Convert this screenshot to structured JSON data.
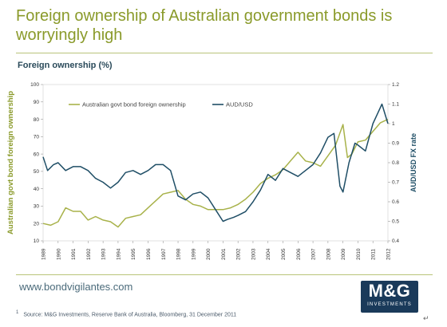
{
  "header": {
    "title": "Foreign ownership of Australian government bonds is worryingly high",
    "subtitle": "Foreign ownership (%)"
  },
  "footer": {
    "website": "www.bondvigilantes.com",
    "footnote_marker": "1",
    "source": "Source: M&G Investments, Reserve Bank of Australia, Bloomberg, 31 December 2011",
    "logo_main": "M&G",
    "logo_sub": "INVESTMENTS",
    "corner_mark": "↵"
  },
  "colors": {
    "title": "#8a9a2a",
    "series_ownership": "#a8b24a",
    "series_aud": "#1f4e66",
    "logo_bg": "#1a3a5a"
  },
  "chart_data": {
    "type": "line",
    "ylabel_left": "Australian govt bond foreign ownership",
    "ylabel_right": "AUD/USD FX rate",
    "ylim_left": [
      10,
      100
    ],
    "ylim_right": [
      0.4,
      1.2
    ],
    "yticks_left": [
      "10",
      "20",
      "30",
      "40",
      "50",
      "60",
      "70",
      "80",
      "90",
      "100"
    ],
    "yticks_right": [
      "0.4",
      "0.5",
      "0.6",
      "0.7",
      "0.8",
      "0.9",
      "1",
      "1.1",
      "1.2"
    ],
    "x_categories": [
      "1989",
      "1990",
      "1991",
      "1992",
      "1993",
      "1994",
      "1995",
      "1996",
      "1997",
      "1998",
      "1999",
      "2000",
      "2001",
      "2002",
      "2003",
      "2004",
      "2005",
      "2006",
      "2007",
      "2008",
      "2009",
      "2010",
      "2011",
      "2012"
    ],
    "xlim": [
      1989,
      2012
    ],
    "legend_position": "top",
    "series": [
      {
        "name": "Australian govt bond foreign ownership",
        "axis": "left",
        "x": [
          1989.0,
          1989.5,
          1990.0,
          1990.5,
          1991.0,
          1991.5,
          1992.0,
          1992.5,
          1993.0,
          1993.5,
          1994.0,
          1994.5,
          1995.0,
          1995.5,
          1996.0,
          1996.5,
          1997.0,
          1997.5,
          1998.0,
          1998.5,
          1999.0,
          1999.5,
          2000.0,
          2000.5,
          2001.0,
          2001.5,
          2002.0,
          2002.5,
          2003.0,
          2003.5,
          2004.0,
          2004.5,
          2005.0,
          2005.5,
          2006.0,
          2006.5,
          2007.0,
          2007.5,
          2008.0,
          2008.5,
          2009.0,
          2009.3,
          2009.6,
          2010.0,
          2010.5,
          2011.0,
          2011.5,
          2012.0
        ],
        "values": [
          20,
          19,
          21,
          29,
          27,
          27,
          22,
          24,
          22,
          21,
          18,
          23,
          24,
          25,
          29,
          33,
          37,
          38,
          39,
          34,
          31,
          30,
          28,
          28,
          28,
          29,
          31,
          34,
          38,
          43,
          46,
          48,
          51,
          56,
          61,
          56,
          55,
          53,
          59,
          65,
          77,
          58,
          60,
          67,
          68,
          73,
          78,
          80
        ]
      },
      {
        "name": "AUD/USD",
        "axis": "right",
        "x": [
          1989.0,
          1989.3,
          1989.7,
          1990.0,
          1990.5,
          1991.0,
          1991.5,
          1992.0,
          1992.5,
          1993.0,
          1993.5,
          1994.0,
          1994.5,
          1995.0,
          1995.5,
          1996.0,
          1996.5,
          1997.0,
          1997.5,
          1998.0,
          1998.5,
          1999.0,
          1999.5,
          2000.0,
          2000.5,
          2001.0,
          2001.3,
          2001.7,
          2002.0,
          2002.5,
          2003.0,
          2003.5,
          2004.0,
          2004.5,
          2005.0,
          2005.5,
          2006.0,
          2006.5,
          2007.0,
          2007.5,
          2008.0,
          2008.4,
          2008.8,
          2009.0,
          2009.4,
          2009.8,
          2010.0,
          2010.5,
          2011.0,
          2011.3,
          2011.6,
          2012.0
        ],
        "values": [
          0.83,
          0.76,
          0.79,
          0.8,
          0.76,
          0.78,
          0.78,
          0.76,
          0.72,
          0.7,
          0.67,
          0.7,
          0.75,
          0.76,
          0.74,
          0.76,
          0.79,
          0.79,
          0.76,
          0.63,
          0.61,
          0.64,
          0.65,
          0.62,
          0.56,
          0.5,
          0.51,
          0.52,
          0.53,
          0.55,
          0.6,
          0.66,
          0.74,
          0.71,
          0.77,
          0.75,
          0.73,
          0.76,
          0.79,
          0.85,
          0.93,
          0.95,
          0.68,
          0.65,
          0.8,
          0.9,
          0.89,
          0.86,
          1.0,
          1.05,
          1.1,
          1.0
        ]
      }
    ]
  }
}
